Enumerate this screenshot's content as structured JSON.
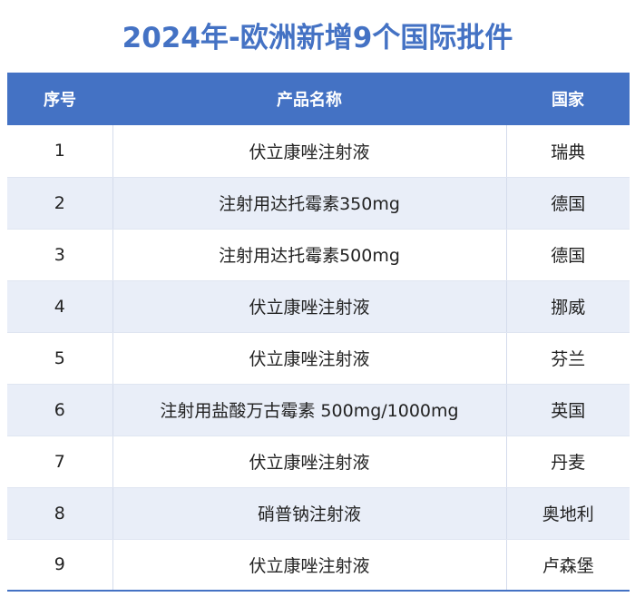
{
  "title": "2024年-欧洲新增9个国际批件",
  "table": {
    "headers": [
      "序号",
      "产品名称",
      "国家"
    ],
    "rows": [
      {
        "no": "1",
        "product": "伏立康唑注射液",
        "country": "瑞典"
      },
      {
        "no": "2",
        "product": "注射用达托霉素350mg",
        "country": "德国"
      },
      {
        "no": "3",
        "product": "注射用达托霉素500mg",
        "country": "德国"
      },
      {
        "no": "4",
        "product": "伏立康唑注射液",
        "country": "挪威"
      },
      {
        "no": "5",
        "product": "伏立康唑注射液",
        "country": "芬兰"
      },
      {
        "no": "6",
        "product": "注射用盐酸万古霉素 500mg/1000mg",
        "country": "英国"
      },
      {
        "no": "7",
        "product": "伏立康唑注射液",
        "country": "丹麦"
      },
      {
        "no": "8",
        "product": "硝普钠注射液",
        "country": "奥地利"
      },
      {
        "no": "9",
        "product": "伏立康唑注射液",
        "country": "卢森堡"
      }
    ]
  },
  "colors": {
    "accent": "#4472C4",
    "row_alt": "#E9EEF8"
  }
}
